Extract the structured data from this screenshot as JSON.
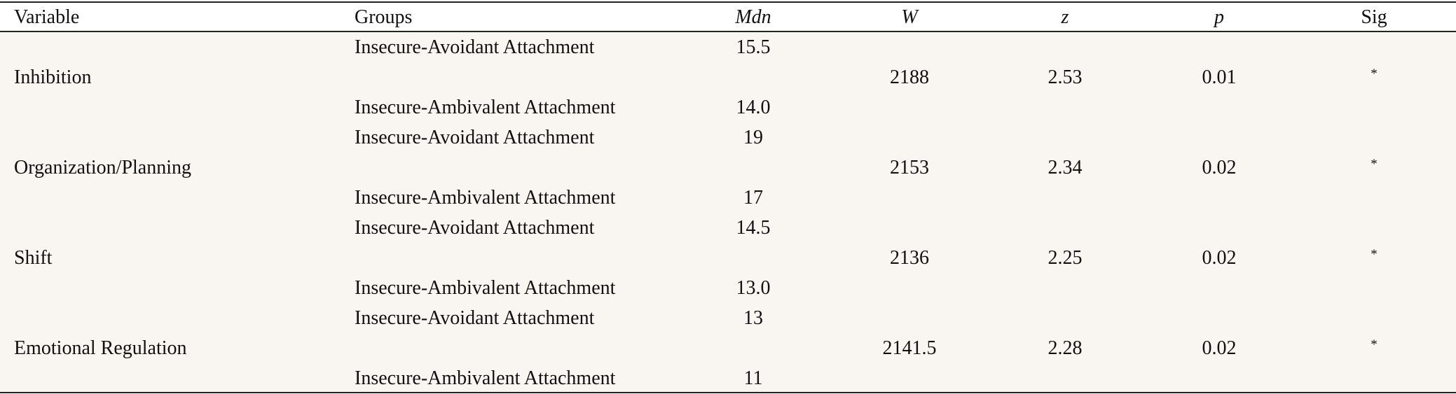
{
  "table": {
    "header": [
      "Variable",
      "Groups",
      "Mdn",
      "W",
      "z",
      "p",
      "Sig"
    ],
    "rows": [
      {
        "variable": "Inhibition",
        "groups": [
          {
            "name": "Insecure-Avoidant Attachment",
            "mdn": "15.5"
          },
          {
            "name": "Insecure-Ambivalent Attachment",
            "mdn": "14.0"
          }
        ],
        "W": "2188",
        "z": "2.53",
        "p": "0.01",
        "sig": "*"
      },
      {
        "variable": "Organization/Planning",
        "groups": [
          {
            "name": "Insecure-Avoidant Attachment",
            "mdn": "19"
          },
          {
            "name": "Insecure-Ambivalent Attachment",
            "mdn": "17"
          }
        ],
        "W": "2153",
        "z": "2.34",
        "p": "0.02",
        "sig": "*"
      },
      {
        "variable": "Shift",
        "groups": [
          {
            "name": "Insecure-Avoidant Attachment",
            "mdn": "14.5"
          },
          {
            "name": "Insecure-Ambivalent Attachment",
            "mdn": "13.0"
          }
        ],
        "W": "2136",
        "z": "2.25",
        "p": "0.02",
        "sig": "*"
      },
      {
        "variable": "Emotional Regulation",
        "groups": [
          {
            "name": "Insecure-Avoidant Attachment",
            "mdn": "13"
          },
          {
            "name": "Insecure-Ambivalent Attachment",
            "mdn": "11"
          }
        ],
        "W": "2141.5",
        "z": "2.28",
        "p": "0.02",
        "sig": "*"
      }
    ]
  }
}
